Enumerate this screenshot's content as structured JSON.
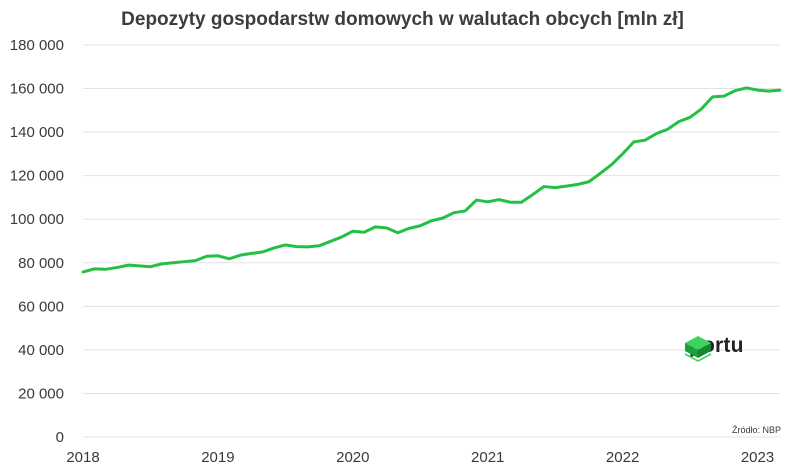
{
  "chart_data": {
    "type": "line",
    "title": "Depozyty gospodarstw domowych w walutach obcych [mln zł]",
    "source": "Źródło: NBP",
    "logo_text": "portu",
    "line_color": "#22c043",
    "grid": true,
    "ylim": [
      0,
      180000
    ],
    "yticks": [
      0,
      20000,
      40000,
      60000,
      80000,
      100000,
      120000,
      140000,
      160000,
      180000
    ],
    "ytick_labels": [
      "0",
      "20 000",
      "40 000",
      "60 000",
      "80 000",
      "100 000",
      "120 000",
      "140 000",
      "160 000",
      "180 000"
    ],
    "xlim": [
      "2018-01",
      "2023-03"
    ],
    "xtick_labels": [
      "2018",
      "2019",
      "2020",
      "2021",
      "2022",
      "2023"
    ],
    "x": [
      "2018-01",
      "2018-02",
      "2018-03",
      "2018-04",
      "2018-05",
      "2018-06",
      "2018-07",
      "2018-08",
      "2018-09",
      "2018-10",
      "2018-11",
      "2018-12",
      "2019-01",
      "2019-02",
      "2019-03",
      "2019-04",
      "2019-05",
      "2019-06",
      "2019-07",
      "2019-08",
      "2019-09",
      "2019-10",
      "2019-11",
      "2019-12",
      "2020-01",
      "2020-02",
      "2020-03",
      "2020-04",
      "2020-05",
      "2020-06",
      "2020-07",
      "2020-08",
      "2020-09",
      "2020-10",
      "2020-11",
      "2020-12",
      "2021-01",
      "2021-02",
      "2021-03",
      "2021-04",
      "2021-05",
      "2021-06",
      "2021-07",
      "2021-08",
      "2021-09",
      "2021-10",
      "2021-11",
      "2021-12",
      "2022-01",
      "2022-02",
      "2022-03",
      "2022-04",
      "2022-05",
      "2022-06",
      "2022-07",
      "2022-08",
      "2022-09",
      "2022-10",
      "2022-11",
      "2022-12",
      "2023-01",
      "2023-02",
      "2023-03"
    ],
    "series": [
      {
        "values": [
          75800,
          77200,
          77000,
          77800,
          78900,
          78600,
          78200,
          79500,
          80000,
          80500,
          81000,
          83000,
          83200,
          81800,
          83500,
          84300,
          85000,
          86800,
          88200,
          87400,
          87300,
          87800,
          89800,
          91800,
          94500,
          94000,
          96500,
          96000,
          93800,
          95800,
          97000,
          99300,
          100500,
          103000,
          103800,
          108800,
          108000,
          109000,
          107800,
          107800,
          111300,
          115000,
          114500,
          115200,
          116000,
          117200,
          121000,
          125000,
          130000,
          135500,
          136300,
          139300,
          141300,
          144800,
          146800,
          150600,
          156200,
          156500,
          159000,
          160300,
          159300,
          158800,
          159300
        ]
      }
    ]
  }
}
